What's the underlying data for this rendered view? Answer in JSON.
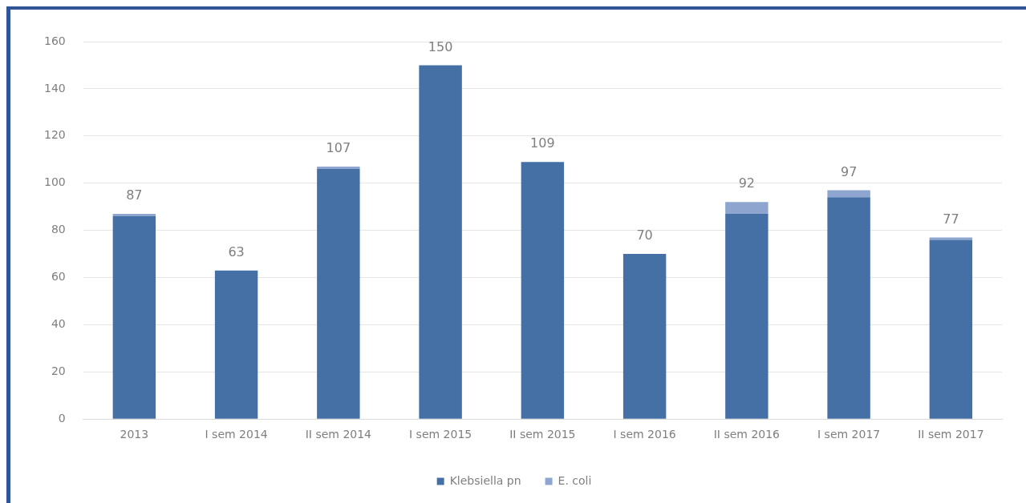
{
  "chart_data": {
    "type": "bar",
    "stacked": true,
    "categories": [
      "2013",
      "I sem 2014",
      "II sem 2014",
      "I sem 2015",
      "II sem 2015",
      "I sem 2016",
      "II sem 2016",
      "I sem 2017",
      "II sem 2017"
    ],
    "series": [
      {
        "name": "Klebsiella pn",
        "color": "#4470a6",
        "values": [
          86,
          63,
          106,
          150,
          109,
          70,
          87,
          94,
          76
        ]
      },
      {
        "name": "E. coli",
        "color": "#8ea5d0",
        "values": [
          1,
          0,
          1,
          0,
          0,
          0,
          5,
          3,
          1
        ]
      }
    ],
    "totals": [
      "87",
      "63",
      "107",
      "150",
      "109",
      "70",
      "92",
      "97",
      "77"
    ],
    "ylim": [
      0,
      160
    ],
    "yticks": [
      0,
      20,
      40,
      60,
      80,
      100,
      120,
      140,
      160
    ],
    "grid": "y",
    "legend": "bottom"
  }
}
